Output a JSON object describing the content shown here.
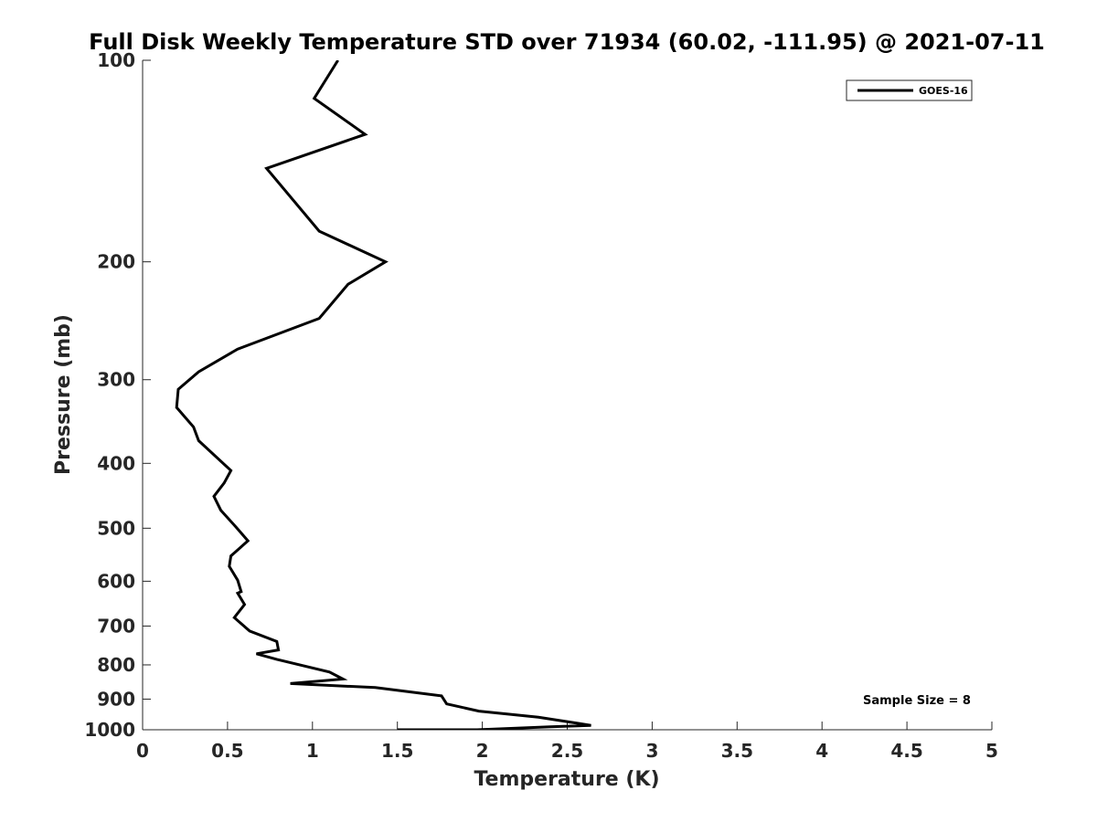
{
  "chart_data": {
    "type": "line",
    "title": "Full Disk Weekly Temperature STD over 71934 (60.02, -111.95) @ 2021-07-11",
    "xlabel": "Temperature (K)",
    "ylabel": "Pressure (mb)",
    "xlim": [
      0,
      5
    ],
    "ylim": [
      100,
      1000
    ],
    "yscale": "log",
    "y_reversed": true,
    "grid": false,
    "legend_position": "top-right",
    "x_ticks": [
      "0",
      "0.5",
      "1",
      "1.5",
      "2",
      "2.5",
      "3",
      "3.5",
      "4",
      "4.5",
      "5"
    ],
    "y_ticks": [
      "100",
      "200",
      "300",
      "400",
      "500",
      "600",
      "700",
      "800",
      "900",
      "1000"
    ],
    "series": [
      {
        "name": "GOES-16",
        "color": "#000000",
        "x": [
          1.15,
          1.01,
          1.31,
          0.73,
          1.04,
          1.43,
          1.21,
          1.04,
          0.56,
          0.33,
          0.21,
          0.2,
          0.3,
          0.33,
          0.52,
          0.48,
          0.42,
          0.46,
          0.55,
          0.62,
          0.52,
          0.51,
          0.56,
          0.58,
          0.56,
          0.6,
          0.54,
          0.63,
          0.79,
          0.8,
          0.67,
          0.79,
          1.1,
          1.18,
          0.87,
          1.37,
          1.76,
          1.79,
          1.98,
          2.33,
          2.64,
          2.4,
          1.97,
          1.5
        ],
        "y": [
          100,
          114,
          129,
          145,
          180,
          200,
          216,
          243,
          270,
          292,
          310,
          330,
          353,
          370,
          410,
          428,
          448,
          470,
          498,
          522,
          550,
          570,
          598,
          622,
          625,
          650,
          680,
          712,
          738,
          760,
          770,
          785,
          820,
          840,
          853,
          865,
          890,
          915,
          938,
          958,
          985,
          990,
          1000,
          1016
        ]
      }
    ],
    "annotation": "Sample Size = 8"
  }
}
